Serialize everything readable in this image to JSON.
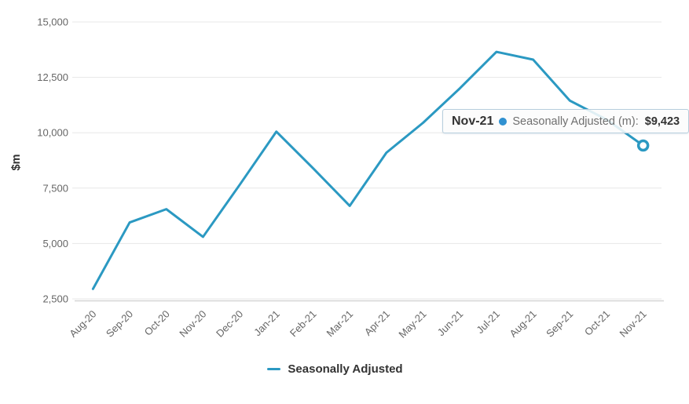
{
  "chart": {
    "y_axis_title": "$m",
    "tooltip": {
      "title": "Nov-21",
      "series_label": "Seasonally Adjusted (m):",
      "value": "$9,423"
    },
    "legend": {
      "label": "Seasonally Adjusted"
    }
  },
  "chart_data": {
    "type": "line",
    "title": "",
    "xlabel": "",
    "ylabel": "$m",
    "categories": [
      "Aug-20",
      "Sep-20",
      "Oct-20",
      "Nov-20",
      "Dec-20",
      "Jan-21",
      "Feb-21",
      "Mar-21",
      "Apr-21",
      "May-21",
      "Jun-21",
      "Jul-21",
      "Aug-21",
      "Sep-21",
      "Oct-21",
      "Nov-21"
    ],
    "series": [
      {
        "name": "Seasonally Adjusted",
        "values": [
          2950,
          5950,
          6550,
          5300,
          7650,
          10050,
          8400,
          6700,
          9100,
          10450,
          12000,
          13650,
          13300,
          11450,
          10600,
          9423
        ]
      }
    ],
    "ylim": [
      2500,
      15000
    ],
    "yticks": [
      2500,
      5000,
      7500,
      10000,
      12500,
      15000
    ],
    "ytick_labels": [
      "2,500",
      "5,000",
      "7,500",
      "10,000",
      "12,500",
      "15,000"
    ],
    "grid": "horizontal",
    "legend_position": "bottom-center",
    "highlighted_point": {
      "category": "Nov-21",
      "value": 9423,
      "marker": "open-circle",
      "tooltip_shown": true
    },
    "colors": {
      "line": "#2b99c2",
      "tooltip_dot": "#2f90d0",
      "tooltip_border": "#b7cedd",
      "grid": "#e7e7e7",
      "axis_line": "#d6d6d6",
      "tick_label": "#666666",
      "text_dark": "#333333"
    }
  }
}
